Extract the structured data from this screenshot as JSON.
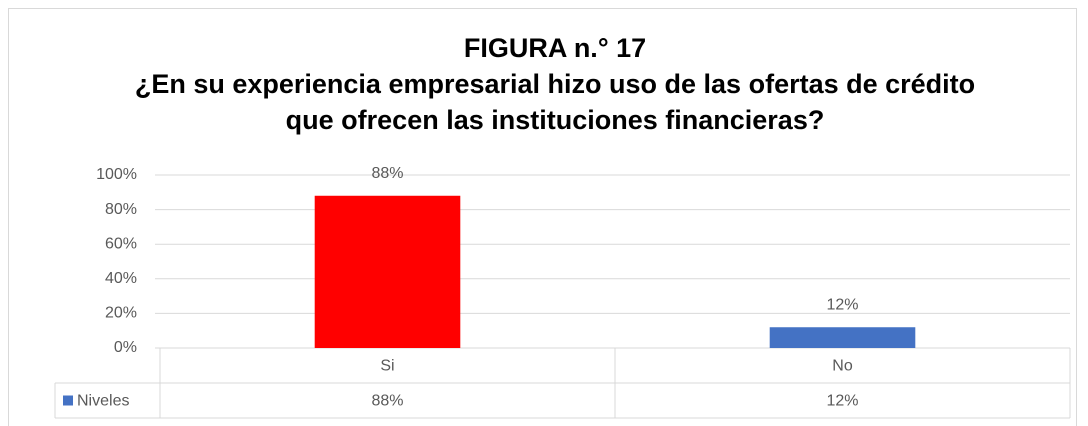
{
  "chart_data": {
    "type": "bar",
    "title": "FIGURA n.° 17",
    "subtitle": "¿En su experiencia empresarial hizo uso de las ofertas de crédito que ofrecen las instituciones financieras?",
    "categories": [
      "Si",
      "No"
    ],
    "series": [
      {
        "name": "Niveles",
        "color": "#4472c4",
        "colors": [
          "#ff0000",
          "#4472c4"
        ],
        "values": [
          88,
          12
        ],
        "value_labels": [
          "88%",
          "12%"
        ]
      }
    ],
    "ylim": [
      0,
      100
    ],
    "yticks": [
      {
        "value": 0,
        "label": "0%"
      },
      {
        "value": 20,
        "label": "20%"
      },
      {
        "value": 40,
        "label": "40%"
      },
      {
        "value": 60,
        "label": "60%"
      },
      {
        "value": 80,
        "label": "80%"
      },
      {
        "value": 100,
        "label": "100%"
      }
    ],
    "grid": true
  }
}
